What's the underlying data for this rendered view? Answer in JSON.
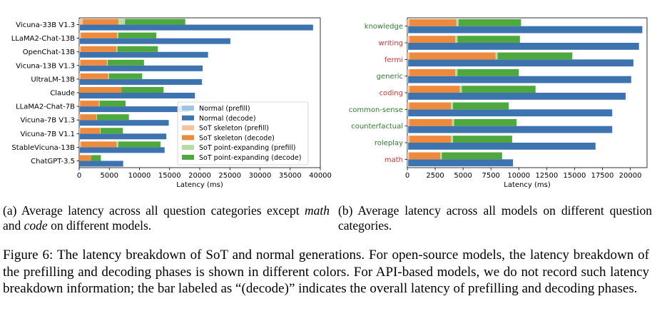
{
  "colors": {
    "normal_prefill": "#9ec5e6",
    "normal_decode": "#3d74b0",
    "sot_skeleton_prefill": "#f5c29d",
    "sot_skeleton_decode": "#ee8a3c",
    "sot_point_prefill": "#b6dba3",
    "sot_point_decode": "#4ea83d",
    "cat_green": "#2e7d32",
    "cat_red": "#d32f2f"
  },
  "caption_a": {
    "text1": "(a) Average latency across all question categories except ",
    "math": "math",
    "text2": " and ",
    "code": "code",
    "text3": " on different models."
  },
  "caption_b": {
    "text": "(b) Average latency across all models on different question categories."
  },
  "main_caption": {
    "text": "Figure 6: The latency breakdown of SoT and normal generations. For open-source models, the latency breakdown of the prefilling and decoding phases is shown in different colors. For API-based models, we do not record such latency breakdown information; the bar labeled as “(decode)” indicates the overall latency of prefilling and decoding phases."
  },
  "chart_data": [
    {
      "type": "bar",
      "orientation": "horizontal",
      "xlabel": "Latency (ms)",
      "xlim": [
        0,
        40000
      ],
      "xticks": [
        0,
        5000,
        10000,
        15000,
        20000,
        25000,
        30000,
        35000,
        40000
      ],
      "xtick_labels": [
        "0",
        "5000",
        "10000",
        "15000",
        "20000",
        "25000",
        "30000",
        "35000",
        "40000"
      ],
      "legend": [
        "Normal (prefill)",
        "Normal (decode)",
        "SoT skeleton (prefill)",
        "SoT skeleton (decode)",
        "SoT point-expanding (prefill)",
        "SoT point-expanding (decode)"
      ],
      "legend_position": "lower-right",
      "categories": [
        "Vicuna-33B V1.3",
        "LLaMA2-Chat-13B",
        "OpenChat-13B",
        "Vicuna-13B V1.3",
        "UltraLM-13B",
        "Claude",
        "LLaMA2-Chat-7B",
        "Vicuna-7B V1.3",
        "Vicuna-7B V1.1",
        "StableVicuna-13B",
        "ChatGPT-3.5"
      ],
      "category_colors": [],
      "series": [
        {
          "name": "Normal (prefill)",
          "values": [
            100,
            80,
            80,
            70,
            70,
            0,
            60,
            60,
            60,
            70,
            0
          ]
        },
        {
          "name": "Normal (decode)",
          "values": [
            38700,
            25000,
            21300,
            20400,
            20300,
            19200,
            18200,
            14800,
            14400,
            14100,
            7300
          ]
        },
        {
          "name": "SoT skeleton (prefill)",
          "values": [
            600,
            300,
            250,
            200,
            200,
            0,
            150,
            150,
            150,
            300,
            0
          ]
        },
        {
          "name": "SoT skeleton (decode)",
          "values": [
            5900,
            6000,
            5900,
            4400,
            4600,
            7000,
            3100,
            2700,
            3300,
            5900,
            2000
          ]
        },
        {
          "name": "SoT point-expanding (prefill)",
          "values": [
            1100,
            200,
            200,
            150,
            150,
            0,
            150,
            100,
            100,
            300,
            0
          ]
        },
        {
          "name": "SoT point-expanding (decode)",
          "values": [
            10000,
            6300,
            6700,
            6000,
            5500,
            7000,
            4300,
            5300,
            3700,
            7000,
            1600
          ]
        }
      ]
    },
    {
      "type": "bar",
      "orientation": "horizontal",
      "xlabel": "Latency (ms)",
      "xlim": [
        0,
        21500
      ],
      "xticks": [
        0,
        2500,
        5000,
        7500,
        10000,
        12500,
        15000,
        17500,
        20000
      ],
      "xtick_labels": [
        "0",
        "2500",
        "5000",
        "7500",
        "10000",
        "12500",
        "15000",
        "17500",
        "20000"
      ],
      "legend": [],
      "categories": [
        "knowledge",
        "writing",
        "fermi",
        "generic",
        "coding",
        "common-sense",
        "counterfactual",
        "roleplay",
        "math"
      ],
      "category_colors": [
        "green",
        "red",
        "red",
        "green",
        "red",
        "green",
        "green",
        "green",
        "red"
      ],
      "series": [
        {
          "name": "Normal (prefill)",
          "values": [
            80,
            80,
            80,
            80,
            80,
            80,
            80,
            80,
            80
          ]
        },
        {
          "name": "Normal (decode)",
          "values": [
            21000,
            20700,
            20200,
            20000,
            19500,
            18300,
            18300,
            16800,
            9400
          ]
        },
        {
          "name": "SoT skeleton (prefill)",
          "values": [
            200,
            200,
            200,
            200,
            200,
            200,
            200,
            200,
            150
          ]
        },
        {
          "name": "SoT skeleton (decode)",
          "values": [
            4200,
            4100,
            7700,
            4100,
            4500,
            3700,
            3800,
            3700,
            2800
          ]
        },
        {
          "name": "SoT point-expanding (prefill)",
          "values": [
            200,
            200,
            200,
            200,
            200,
            200,
            200,
            200,
            150
          ]
        },
        {
          "name": "SoT point-expanding (decode)",
          "values": [
            5600,
            5600,
            6700,
            5500,
            6600,
            5000,
            5600,
            5300,
            5400
          ]
        }
      ]
    }
  ]
}
